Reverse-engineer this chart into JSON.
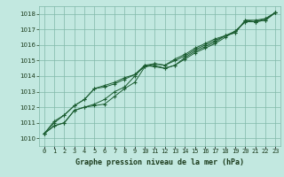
{
  "title": "Graphe pression niveau de la mer (hPa)",
  "background_color": "#c2e8e0",
  "grid_color": "#80b8a8",
  "line_color": "#1a5c30",
  "marker_color": "#1a5c30",
  "ylim": [
    1009.5,
    1018.5
  ],
  "xlim": [
    -0.5,
    23.5
  ],
  "yticks": [
    1010,
    1011,
    1012,
    1013,
    1014,
    1015,
    1016,
    1017,
    1018
  ],
  "xticks": [
    0,
    1,
    2,
    3,
    4,
    5,
    6,
    7,
    8,
    9,
    10,
    11,
    12,
    13,
    14,
    15,
    16,
    17,
    18,
    19,
    20,
    21,
    22,
    23
  ],
  "line1": [
    1010.3,
    1010.8,
    1011.0,
    1011.8,
    1012.0,
    1012.1,
    1012.2,
    1012.7,
    1013.2,
    1013.6,
    1014.6,
    1014.7,
    1014.5,
    1014.7,
    1015.1,
    1015.5,
    1015.8,
    1016.1,
    1016.5,
    1016.9,
    1017.5,
    1017.5,
    1017.6,
    1018.1
  ],
  "line2": [
    1010.3,
    1010.8,
    1011.0,
    1011.8,
    1012.0,
    1012.2,
    1012.5,
    1013.0,
    1013.3,
    1014.0,
    1014.7,
    1014.6,
    1014.5,
    1014.7,
    1015.2,
    1015.6,
    1015.9,
    1016.2,
    1016.6,
    1016.9,
    1017.5,
    1017.5,
    1017.6,
    1018.1
  ],
  "line3": [
    1010.3,
    1011.0,
    1011.5,
    1012.1,
    1012.5,
    1013.2,
    1013.3,
    1013.5,
    1013.8,
    1014.1,
    1014.6,
    1014.8,
    1014.7,
    1015.0,
    1015.3,
    1015.7,
    1016.0,
    1016.3,
    1016.6,
    1016.8,
    1017.6,
    1017.6,
    1017.7,
    1018.1
  ],
  "line4": [
    1010.3,
    1011.1,
    1011.5,
    1012.1,
    1012.5,
    1013.2,
    1013.4,
    1013.6,
    1013.9,
    1014.1,
    1014.7,
    1014.8,
    1014.7,
    1015.1,
    1015.4,
    1015.8,
    1016.1,
    1016.4,
    1016.6,
    1016.8,
    1017.6,
    1017.5,
    1017.7,
    1018.1
  ],
  "ylabel_fontsize": 6,
  "xlabel_fontsize": 6,
  "tick_fontsize": 5
}
